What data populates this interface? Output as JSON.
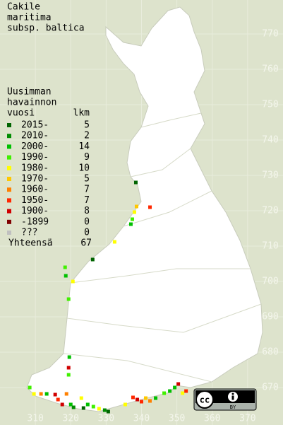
{
  "title": [
    "Cakile",
    "maritima",
    "subsp. baltica"
  ],
  "legend": {
    "heading": [
      "Uusimman",
      "havainnon",
      "vuosi"
    ],
    "count_heading": "lkm",
    "rows": [
      {
        "label": "2015-",
        "count": 5,
        "color": "#006400"
      },
      {
        "label": "2010-",
        "count": 2,
        "color": "#008c00"
      },
      {
        "label": "2000-",
        "count": 14,
        "color": "#00c000"
      },
      {
        "label": "1990-",
        "count": 9,
        "color": "#40f000"
      },
      {
        "label": "1980-",
        "count": 10,
        "color": "#ffff00"
      },
      {
        "label": "1970-",
        "count": 5,
        "color": "#ffc800"
      },
      {
        "label": "1960-",
        "count": 7,
        "color": "#ff8000"
      },
      {
        "label": "1950-",
        "count": 7,
        "color": "#ff2800"
      },
      {
        "label": "1900-",
        "count": 8,
        "color": "#d00000"
      },
      {
        "label": "-1899",
        "count": 0,
        "color": "#800000"
      },
      {
        "label": "???",
        "count": 0,
        "color": "#c0c0c0"
      }
    ],
    "total": {
      "label": "Yhteensä",
      "count": 67
    }
  },
  "map": {
    "xlim": [
      300,
      380
    ],
    "ylim": [
      659.4,
      779.6
    ],
    "xticks": [
      310,
      320,
      330,
      340,
      350,
      360,
      370
    ],
    "yticks": [
      670,
      680,
      690,
      700,
      710,
      720,
      730,
      740,
      750,
      760,
      770
    ],
    "points": [
      {
        "x": 338.4,
        "y": 728,
        "period": 0
      },
      {
        "x": 342.4,
        "y": 721,
        "period": 7
      },
      {
        "x": 338.6,
        "y": 721.2,
        "period": 5
      },
      {
        "x": 338,
        "y": 719.6,
        "period": 4
      },
      {
        "x": 337.4,
        "y": 717.6,
        "period": 3
      },
      {
        "x": 337,
        "y": 716.2,
        "period": 2
      },
      {
        "x": 332.4,
        "y": 711.2,
        "period": 4
      },
      {
        "x": 326.2,
        "y": 706.2,
        "period": 0
      },
      {
        "x": 318.4,
        "y": 704,
        "period": 3
      },
      {
        "x": 318.6,
        "y": 701.6,
        "period": 2
      },
      {
        "x": 320.6,
        "y": 700,
        "period": 4
      },
      {
        "x": 319.4,
        "y": 695,
        "period": 3
      },
      {
        "x": 319.6,
        "y": 678.6,
        "period": 2
      },
      {
        "x": 319.4,
        "y": 675.6,
        "period": 8
      },
      {
        "x": 319.4,
        "y": 673.6,
        "period": 3
      },
      {
        "x": 308.4,
        "y": 670,
        "period": 3
      },
      {
        "x": 309.6,
        "y": 668.2,
        "period": 4
      },
      {
        "x": 311.6,
        "y": 668.2,
        "period": 6
      },
      {
        "x": 313.2,
        "y": 668.2,
        "period": 2
      },
      {
        "x": 315.6,
        "y": 668,
        "period": 8
      },
      {
        "x": 316.4,
        "y": 666.6,
        "period": 7
      },
      {
        "x": 317.6,
        "y": 665.2,
        "period": 8
      },
      {
        "x": 318.8,
        "y": 668.2,
        "period": 6
      },
      {
        "x": 320,
        "y": 665.2,
        "period": 2
      },
      {
        "x": 320.8,
        "y": 664.4,
        "period": 1
      },
      {
        "x": 323,
        "y": 667,
        "period": 4
      },
      {
        "x": 323.6,
        "y": 664.2,
        "period": 0
      },
      {
        "x": 324.8,
        "y": 665.2,
        "period": 2
      },
      {
        "x": 326.4,
        "y": 664.6,
        "period": 3
      },
      {
        "x": 328,
        "y": 664,
        "period": 4
      },
      {
        "x": 329.6,
        "y": 663.6,
        "period": 1
      },
      {
        "x": 330.6,
        "y": 663.2,
        "period": 0
      },
      {
        "x": 335.4,
        "y": 665.2,
        "period": 4
      },
      {
        "x": 337.6,
        "y": 667.2,
        "period": 7
      },
      {
        "x": 338.8,
        "y": 666.6,
        "period": 8
      },
      {
        "x": 340,
        "y": 666,
        "period": 7
      },
      {
        "x": 341.2,
        "y": 667,
        "period": 5
      },
      {
        "x": 342.4,
        "y": 666.2,
        "period": 6
      },
      {
        "x": 344,
        "y": 667,
        "period": 2
      },
      {
        "x": 346.4,
        "y": 668.4,
        "period": 3
      },
      {
        "x": 348,
        "y": 669,
        "period": 2
      },
      {
        "x": 349.4,
        "y": 670,
        "period": 2
      },
      {
        "x": 350.4,
        "y": 671,
        "period": 8
      },
      {
        "x": 351.6,
        "y": 668.4,
        "period": 4
      },
      {
        "x": 352.6,
        "y": 669,
        "period": 7
      }
    ]
  },
  "license": [
    "cc",
    "BY"
  ]
}
